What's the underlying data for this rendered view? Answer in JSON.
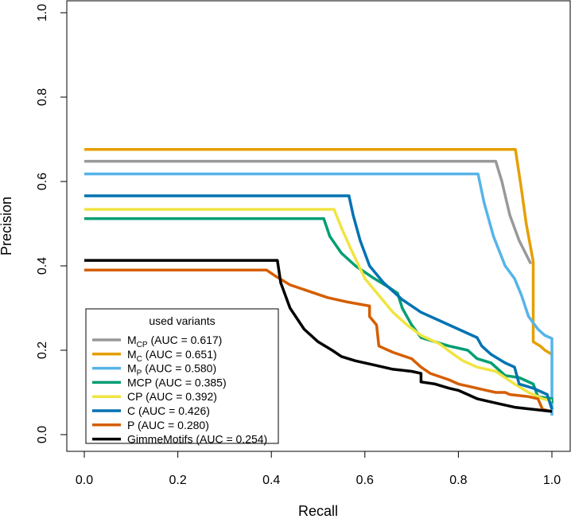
{
  "chart_data": {
    "type": "line",
    "title": "",
    "xlabel": "Recall",
    "ylabel": "Precision",
    "xlim": [
      0,
      1
    ],
    "ylim": [
      0,
      1
    ],
    "xticks": [
      "0.0",
      "0.2",
      "0.4",
      "0.6",
      "0.8",
      "1.0"
    ],
    "yticks": [
      "0.0",
      "0.2",
      "0.4",
      "0.6",
      "0.8",
      "1.0"
    ],
    "legend": {
      "title": "used variants",
      "position": "bottom-left"
    },
    "series": [
      {
        "name": "M",
        "subscript": "CP",
        "auc": "(AUC = 0.617)",
        "color": "#999999",
        "points": [
          [
            0,
            0.648
          ],
          [
            0.88,
            0.648
          ],
          [
            0.893,
            0.6
          ],
          [
            0.91,
            0.52
          ],
          [
            0.93,
            0.46
          ],
          [
            0.955,
            0.405
          ]
        ]
      },
      {
        "name": "M",
        "subscript": "C",
        "auc": "(AUC = 0.651)",
        "color": "#E69F00",
        "points": [
          [
            0,
            0.676
          ],
          [
            0.922,
            0.676
          ],
          [
            0.935,
            0.58
          ],
          [
            0.945,
            0.5
          ],
          [
            0.96,
            0.41
          ],
          [
            0.96,
            0.22
          ],
          [
            0.975,
            0.21
          ],
          [
            0.985,
            0.2
          ],
          [
            1.0,
            0.19
          ]
        ]
      },
      {
        "name": "M",
        "subscript": "P",
        "auc": "(AUC = 0.580)",
        "color": "#56B4E9",
        "points": [
          [
            0,
            0.618
          ],
          [
            0.842,
            0.618
          ],
          [
            0.855,
            0.55
          ],
          [
            0.875,
            0.47
          ],
          [
            0.9,
            0.4
          ],
          [
            0.92,
            0.37
          ],
          [
            0.935,
            0.33
          ],
          [
            0.95,
            0.28
          ],
          [
            0.97,
            0.25
          ],
          [
            0.985,
            0.235
          ],
          [
            1.0,
            0.228
          ],
          [
            1.0,
            0.045
          ]
        ]
      },
      {
        "name": "MCP",
        "subscript": "",
        "auc": "(AUC = 0.385)",
        "color": "#009E73",
        "points": [
          [
            0,
            0.512
          ],
          [
            0.512,
            0.512
          ],
          [
            0.525,
            0.47
          ],
          [
            0.55,
            0.43
          ],
          [
            0.58,
            0.4
          ],
          [
            0.62,
            0.37
          ],
          [
            0.65,
            0.35
          ],
          [
            0.67,
            0.335
          ],
          [
            0.68,
            0.3
          ],
          [
            0.7,
            0.26
          ],
          [
            0.72,
            0.23
          ],
          [
            0.75,
            0.22
          ],
          [
            0.78,
            0.21
          ],
          [
            0.82,
            0.2
          ],
          [
            0.84,
            0.18
          ],
          [
            0.87,
            0.17
          ],
          [
            0.9,
            0.14
          ],
          [
            0.93,
            0.135
          ],
          [
            0.96,
            0.12
          ],
          [
            0.97,
            0.09
          ],
          [
            1.0,
            0.085
          ],
          [
            1.0,
            0.075
          ]
        ]
      },
      {
        "name": "CP",
        "subscript": "",
        "auc": "(AUC = 0.392)",
        "color": "#F0E442",
        "points": [
          [
            0,
            0.534
          ],
          [
            0.534,
            0.534
          ],
          [
            0.55,
            0.49
          ],
          [
            0.57,
            0.44
          ],
          [
            0.6,
            0.37
          ],
          [
            0.63,
            0.33
          ],
          [
            0.66,
            0.29
          ],
          [
            0.69,
            0.26
          ],
          [
            0.72,
            0.235
          ],
          [
            0.76,
            0.215
          ],
          [
            0.79,
            0.19
          ],
          [
            0.81,
            0.175
          ],
          [
            0.84,
            0.16
          ],
          [
            0.88,
            0.15
          ],
          [
            0.92,
            0.12
          ],
          [
            0.95,
            0.1
          ],
          [
            0.98,
            0.085
          ],
          [
            1.0,
            0.08
          ]
        ]
      },
      {
        "name": "C",
        "subscript": "",
        "auc": "(AUC = 0.426)",
        "color": "#0072B2",
        "points": [
          [
            0,
            0.566
          ],
          [
            0.566,
            0.566
          ],
          [
            0.575,
            0.52
          ],
          [
            0.59,
            0.46
          ],
          [
            0.61,
            0.4
          ],
          [
            0.64,
            0.36
          ],
          [
            0.68,
            0.32
          ],
          [
            0.72,
            0.29
          ],
          [
            0.76,
            0.27
          ],
          [
            0.8,
            0.25
          ],
          [
            0.84,
            0.23
          ],
          [
            0.85,
            0.21
          ],
          [
            0.87,
            0.19
          ],
          [
            0.9,
            0.17
          ],
          [
            0.92,
            0.16
          ],
          [
            0.93,
            0.12
          ],
          [
            0.96,
            0.11
          ],
          [
            0.99,
            0.095
          ],
          [
            1.0,
            0.06
          ]
        ]
      },
      {
        "name": "P",
        "subscript": "",
        "auc": "(AUC = 0.280)",
        "color": "#D55E00",
        "points": [
          [
            0,
            0.39
          ],
          [
            0.39,
            0.39
          ],
          [
            0.41,
            0.375
          ],
          [
            0.44,
            0.355
          ],
          [
            0.48,
            0.34
          ],
          [
            0.52,
            0.325
          ],
          [
            0.56,
            0.315
          ],
          [
            0.61,
            0.305
          ],
          [
            0.61,
            0.28
          ],
          [
            0.625,
            0.26
          ],
          [
            0.63,
            0.21
          ],
          [
            0.66,
            0.195
          ],
          [
            0.7,
            0.18
          ],
          [
            0.72,
            0.16
          ],
          [
            0.74,
            0.145
          ],
          [
            0.78,
            0.13
          ],
          [
            0.8,
            0.12
          ],
          [
            0.82,
            0.115
          ],
          [
            0.86,
            0.105
          ],
          [
            0.88,
            0.1
          ],
          [
            0.9,
            0.1
          ],
          [
            0.91,
            0.095
          ],
          [
            0.95,
            0.09
          ],
          [
            0.97,
            0.085
          ],
          [
            0.98,
            0.06
          ],
          [
            1.0,
            0.055
          ]
        ]
      },
      {
        "name": "GimmeMotifs",
        "subscript": "",
        "auc": "(AUC = 0.254)",
        "color": "#000000",
        "points": [
          [
            0,
            0.413
          ],
          [
            0.413,
            0.413
          ],
          [
            0.42,
            0.36
          ],
          [
            0.44,
            0.3
          ],
          [
            0.47,
            0.25
          ],
          [
            0.5,
            0.22
          ],
          [
            0.53,
            0.2
          ],
          [
            0.55,
            0.185
          ],
          [
            0.58,
            0.175
          ],
          [
            0.62,
            0.165
          ],
          [
            0.66,
            0.155
          ],
          [
            0.7,
            0.15
          ],
          [
            0.72,
            0.145
          ],
          [
            0.72,
            0.125
          ],
          [
            0.75,
            0.12
          ],
          [
            0.78,
            0.11
          ],
          [
            0.8,
            0.105
          ],
          [
            0.82,
            0.095
          ],
          [
            0.84,
            0.085
          ],
          [
            0.88,
            0.075
          ],
          [
            0.9,
            0.07
          ],
          [
            0.92,
            0.065
          ],
          [
            0.96,
            0.06
          ],
          [
            1.0,
            0.055
          ]
        ]
      }
    ]
  }
}
